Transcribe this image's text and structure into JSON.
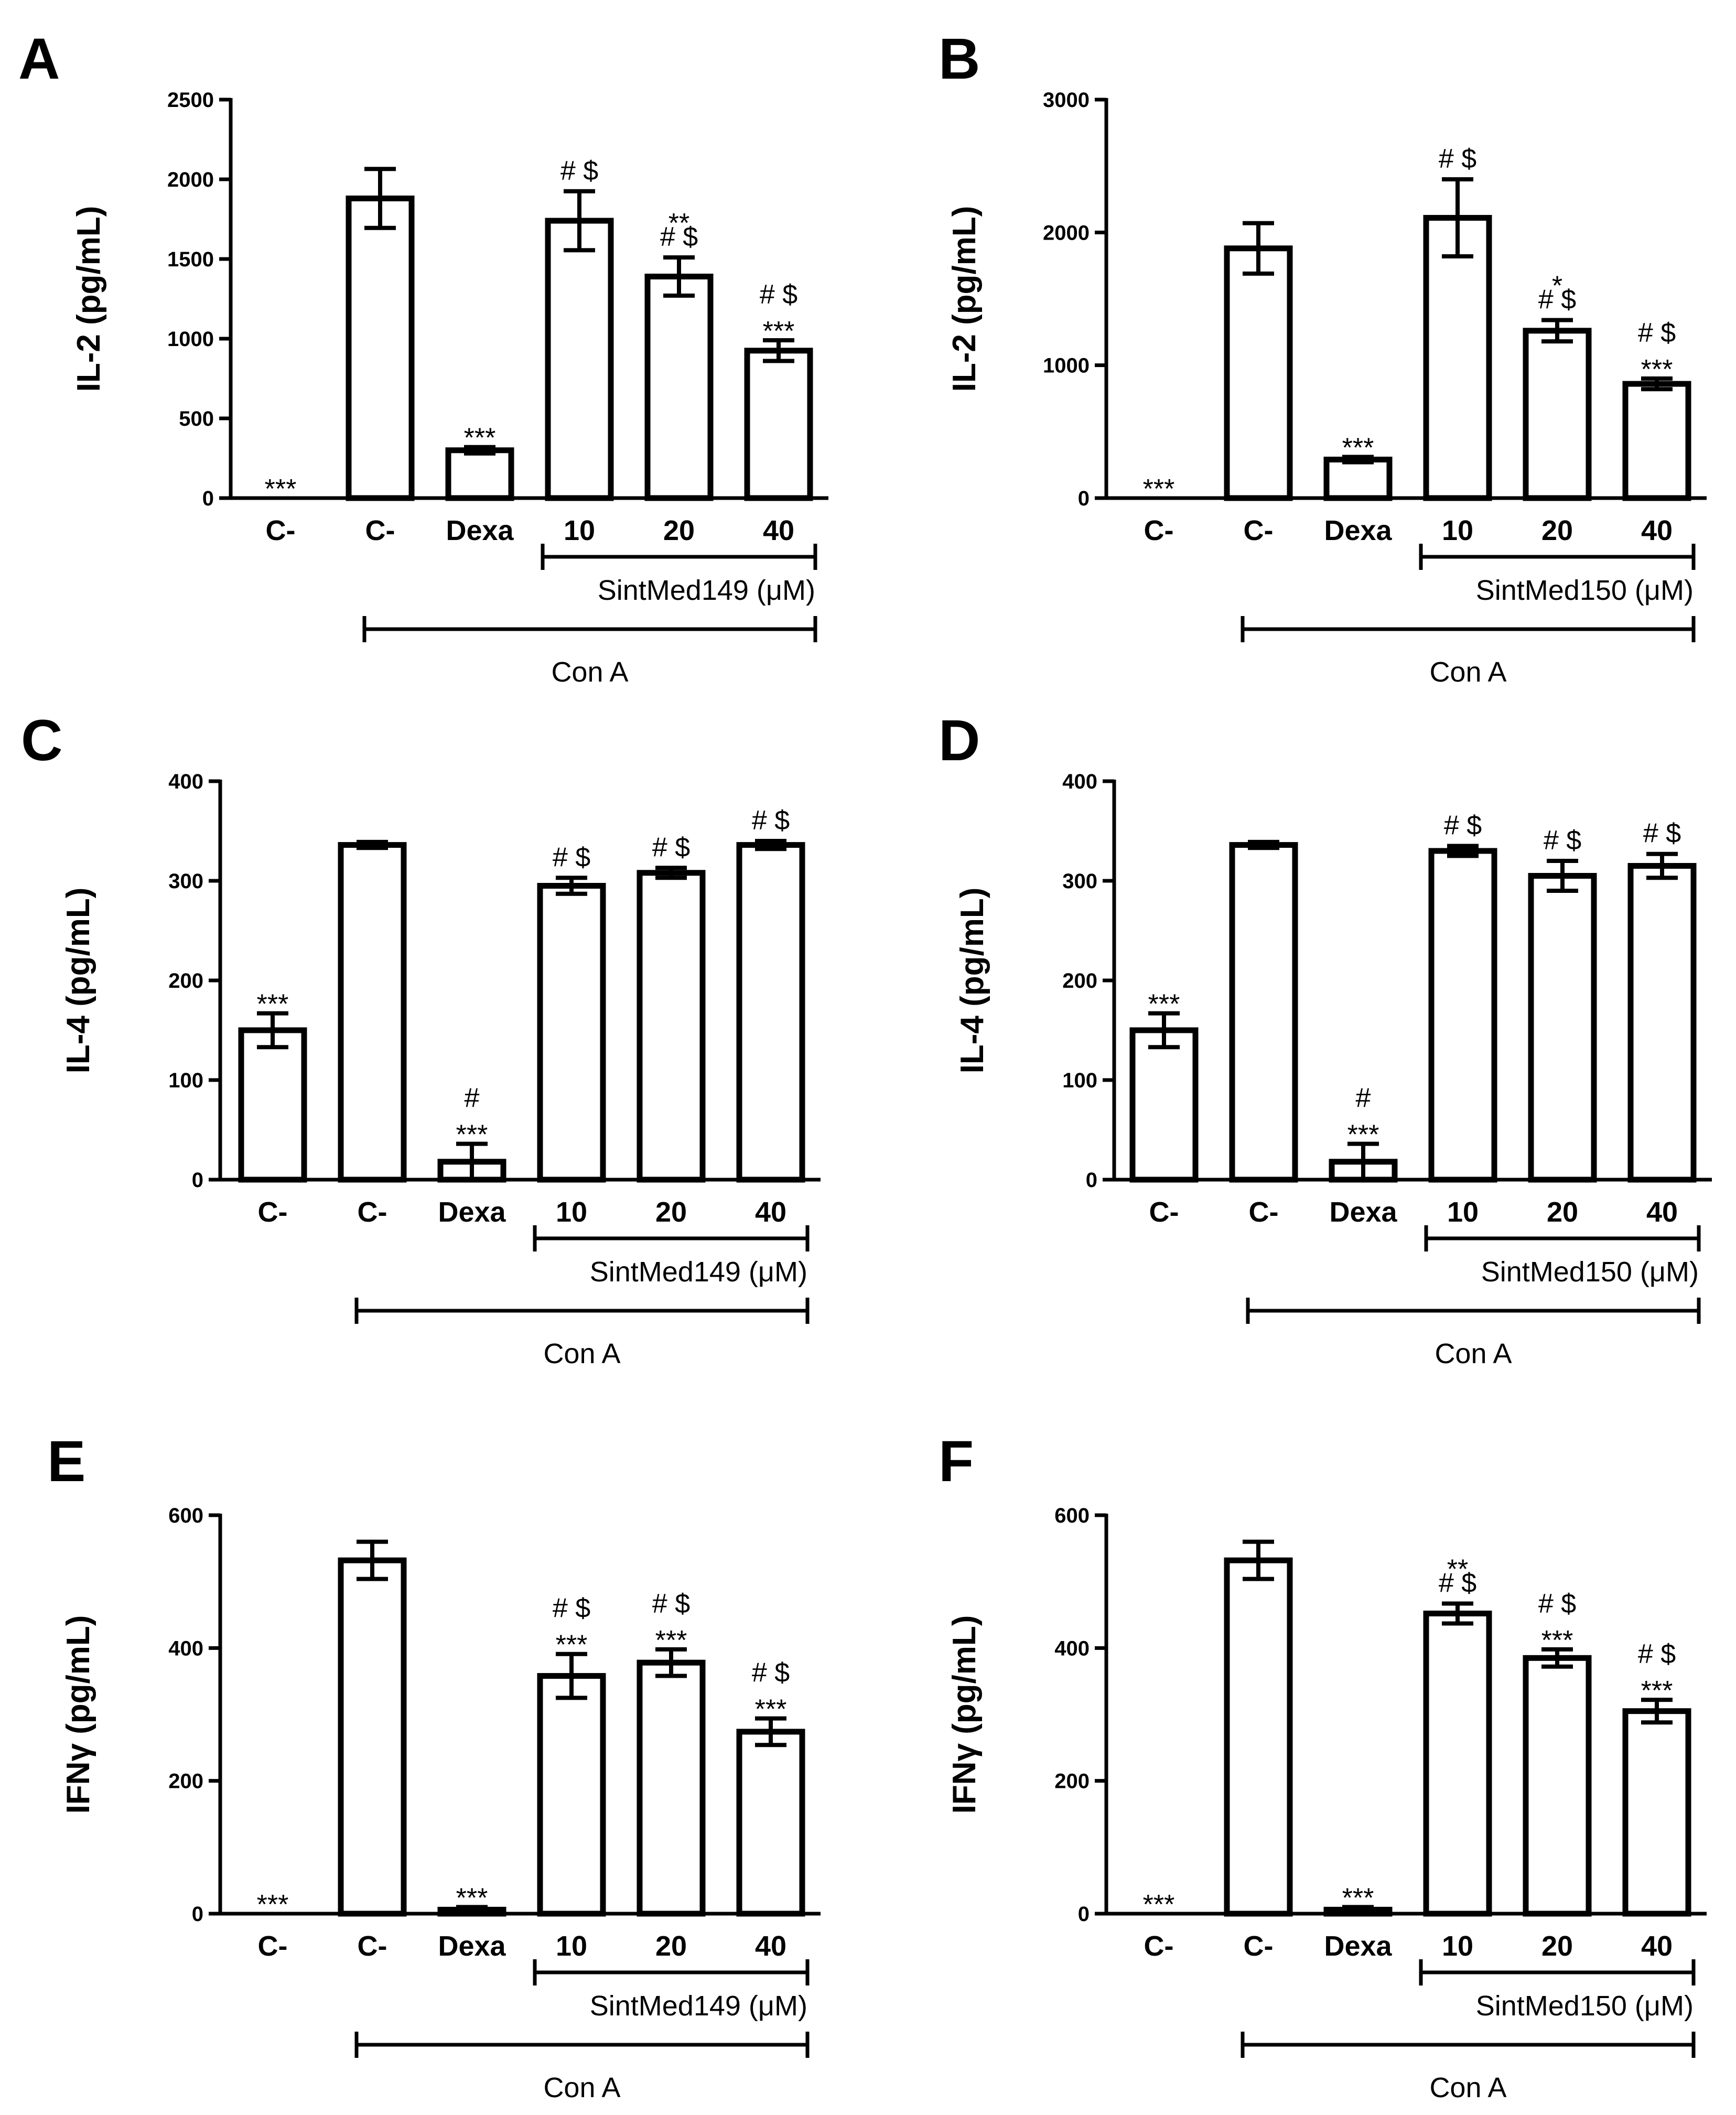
{
  "chart_data": [
    {
      "type": "bar",
      "panel": "A",
      "ylabel": "IL-2  (pg/mL)",
      "ylim": [
        0,
        2500
      ],
      "yticks": [
        0,
        500,
        1000,
        1500,
        2000,
        2500
      ],
      "categories": [
        "C-",
        "C-",
        "Dexa",
        "10",
        "20",
        "40"
      ],
      "values": [
        0,
        1880,
        300,
        1740,
        1390,
        925
      ],
      "errors": [
        0,
        185,
        20,
        185,
        120,
        65
      ],
      "annotations": [
        [
          "***"
        ],
        [],
        [
          "***"
        ],
        [
          "# $"
        ],
        [
          "**",
          "# $"
        ],
        [
          "# $",
          "***"
        ]
      ],
      "compound_label": "SintMed149  (μM)",
      "group_label": "Con A"
    },
    {
      "type": "bar",
      "panel": "B",
      "ylabel": "IL-2  (pg/mL)",
      "ylim": [
        0,
        3000
      ],
      "yticks": [
        0,
        1000,
        2000,
        3000
      ],
      "categories": [
        "C-",
        "C-",
        "Dexa",
        "10",
        "20",
        "40"
      ],
      "values": [
        0,
        1880,
        290,
        2110,
        1260,
        860
      ],
      "errors": [
        0,
        190,
        20,
        290,
        80,
        40
      ],
      "annotations": [
        [
          "***"
        ],
        [],
        [
          "***"
        ],
        [
          "# $"
        ],
        [
          "*",
          "# $"
        ],
        [
          "# $",
          "***"
        ]
      ],
      "compound_label": "SintMed150  (μM)",
      "group_label": "Con A"
    },
    {
      "type": "bar",
      "panel": "C",
      "ylabel": "IL-4  (pg/mL)",
      "ylim": [
        0,
        400
      ],
      "yticks": [
        0,
        100,
        200,
        300,
        400
      ],
      "categories": [
        "C-",
        "C-",
        "Dexa",
        "10",
        "20",
        "40"
      ],
      "values": [
        150,
        336,
        18,
        295,
        308,
        336
      ],
      "errors": [
        17,
        3,
        18,
        8,
        5,
        4
      ],
      "annotations": [
        [
          "***"
        ],
        [],
        [
          "#",
          "***"
        ],
        [
          "# $"
        ],
        [
          "# $"
        ],
        [
          "# $"
        ]
      ],
      "compound_label": "SintMed149  (μM)",
      "group_label": "Con A"
    },
    {
      "type": "bar",
      "panel": "D",
      "ylabel": "IL-4  (pg/mL)",
      "ylim": [
        0,
        400
      ],
      "yticks": [
        0,
        100,
        200,
        300,
        400
      ],
      "categories": [
        "C-",
        "C-",
        "Dexa",
        "10",
        "20",
        "40"
      ],
      "values": [
        150,
        336,
        18,
        330,
        305,
        315
      ],
      "errors": [
        17,
        3,
        18,
        5,
        15,
        12
      ],
      "annotations": [
        [
          "***"
        ],
        [],
        [
          "#",
          "***"
        ],
        [
          "# $"
        ],
        [
          "# $"
        ],
        [
          "# $"
        ]
      ],
      "compound_label": "SintMed150 (μM)",
      "group_label": "Con A"
    },
    {
      "type": "bar",
      "panel": "E",
      "ylabel": "IFNγ  (pg/mL)",
      "ylim": [
        0,
        600
      ],
      "yticks": [
        0,
        200,
        400,
        600
      ],
      "categories": [
        "C-",
        "C-",
        "Dexa",
        "10",
        "20",
        "40"
      ],
      "values": [
        0,
        532,
        6,
        358,
        378,
        274
      ],
      "errors": [
        0,
        28,
        4,
        33,
        20,
        20
      ],
      "annotations": [
        [
          "***"
        ],
        [],
        [
          "***"
        ],
        [
          "# $",
          "***"
        ],
        [
          "# $",
          "***"
        ],
        [
          "# $",
          "***"
        ]
      ],
      "compound_label": "SintMed149  (μM)",
      "group_label": "Con A"
    },
    {
      "type": "bar",
      "panel": "F",
      "ylabel": "IFNγ  (pg/mL)",
      "ylim": [
        0,
        600
      ],
      "yticks": [
        0,
        200,
        400,
        600
      ],
      "categories": [
        "C-",
        "C-",
        "Dexa",
        "10",
        "20",
        "40"
      ],
      "values": [
        0,
        532,
        6,
        452,
        385,
        305
      ],
      "errors": [
        0,
        28,
        4,
        15,
        13,
        17
      ],
      "annotations": [
        [
          "***"
        ],
        [],
        [
          "***"
        ],
        [
          "**",
          "# $"
        ],
        [
          "# $",
          "***"
        ],
        [
          "# $",
          "***"
        ]
      ],
      "compound_label": "SintMed150  (μM)",
      "group_label": "Con A"
    }
  ]
}
